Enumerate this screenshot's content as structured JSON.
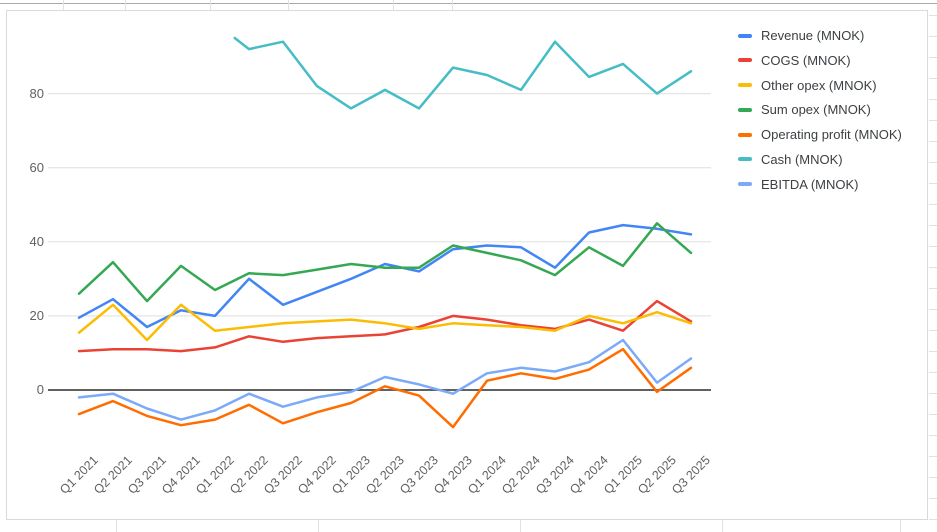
{
  "chart_data": {
    "type": "line",
    "categories": [
      "Q1 2021",
      "Q2 2021",
      "Q3 2021",
      "Q4 2021",
      "Q1 2022",
      "Q2 2022",
      "Q3 2022",
      "Q4 2022",
      "Q1 2023",
      "Q2 2023",
      "Q3 2023",
      "Q4 2023",
      "Q1 2024",
      "Q2 2024",
      "Q3 2024",
      "Q4 2024",
      "Q1 2025",
      "Q2 2025",
      "Q3 2025"
    ],
    "series": [
      {
        "name": "Revenue (MNOK)",
        "color": "#4285F4",
        "values": [
          19.5,
          24.5,
          17,
          21.5,
          20,
          30,
          23,
          26.5,
          30,
          34,
          32,
          38,
          39,
          38.5,
          33,
          42.5,
          44.5,
          43.5,
          42
        ]
      },
      {
        "name": "COGS (MNOK)",
        "color": "#EA4335",
        "values": [
          10.5,
          11,
          11,
          10.5,
          11.5,
          14.5,
          13,
          14,
          14.5,
          15,
          17,
          20,
          19,
          17.5,
          16.5,
          19,
          16,
          24,
          18.5
        ]
      },
      {
        "name": "Other opex (MNOK)",
        "color": "#FBBC04",
        "values": [
          15.5,
          23,
          13.5,
          23,
          16,
          17,
          18,
          18.5,
          19,
          18,
          16.5,
          18,
          17.5,
          17,
          16,
          20,
          18,
          21,
          18
        ]
      },
      {
        "name": "Sum opex (MNOK)",
        "color": "#34A853",
        "values": [
          26,
          34.5,
          24,
          33.5,
          27,
          31.5,
          31,
          32.5,
          34,
          33,
          33,
          39,
          37,
          35,
          31,
          38.5,
          33.5,
          45,
          37
        ]
      },
      {
        "name": "Operating profit (MNOK)",
        "color": "#FF6D01",
        "values": [
          -6.5,
          -3,
          -7,
          -9.5,
          -8,
          -4,
          -9,
          -6,
          -3.5,
          1,
          -1.5,
          -10,
          2.5,
          4.5,
          3,
          5.5,
          11,
          -0.5,
          6
        ]
      },
      {
        "name": "Cash (MNOK)",
        "color": "#46BDC6",
        "values": [
          null,
          null,
          null,
          null,
          null,
          92,
          94,
          82,
          76,
          81,
          76,
          87,
          85,
          81,
          94,
          84.5,
          88,
          80,
          86
        ],
        "lead_in": {
          "offset_quarters": -0.42,
          "value": 95
        }
      },
      {
        "name": "EBITDA (MNOK)",
        "color": "#7BAAF7",
        "values": [
          -2,
          -1,
          -5,
          -8,
          -5.5,
          -1,
          -4.5,
          -2,
          -0.5,
          3.5,
          1.5,
          -1,
          4.5,
          6,
          5,
          7.5,
          13.5,
          2,
          8.5
        ]
      }
    ],
    "y_axis": {
      "ticks": [
        0,
        20,
        40,
        60,
        80
      ],
      "zero_line_color": "#616161",
      "gridline_color": "#e6e6e6"
    },
    "x_axis": {
      "label_rotation_deg": -45
    },
    "title": "",
    "legend_position": "right",
    "grid": true
  },
  "legend": {
    "items": [
      {
        "label": "Revenue (MNOK)",
        "color": "#4285F4"
      },
      {
        "label": "COGS (MNOK)",
        "color": "#EA4335"
      },
      {
        "label": "Other opex (MNOK)",
        "color": "#FBBC04"
      },
      {
        "label": "Sum opex (MNOK)",
        "color": "#34A853"
      },
      {
        "label": "Operating profit (MNOK)",
        "color": "#FF6D01"
      },
      {
        "label": "Cash (MNOK)",
        "color": "#46BDC6"
      },
      {
        "label": "EBITDA (MNOK)",
        "color": "#7BAAF7"
      }
    ]
  }
}
